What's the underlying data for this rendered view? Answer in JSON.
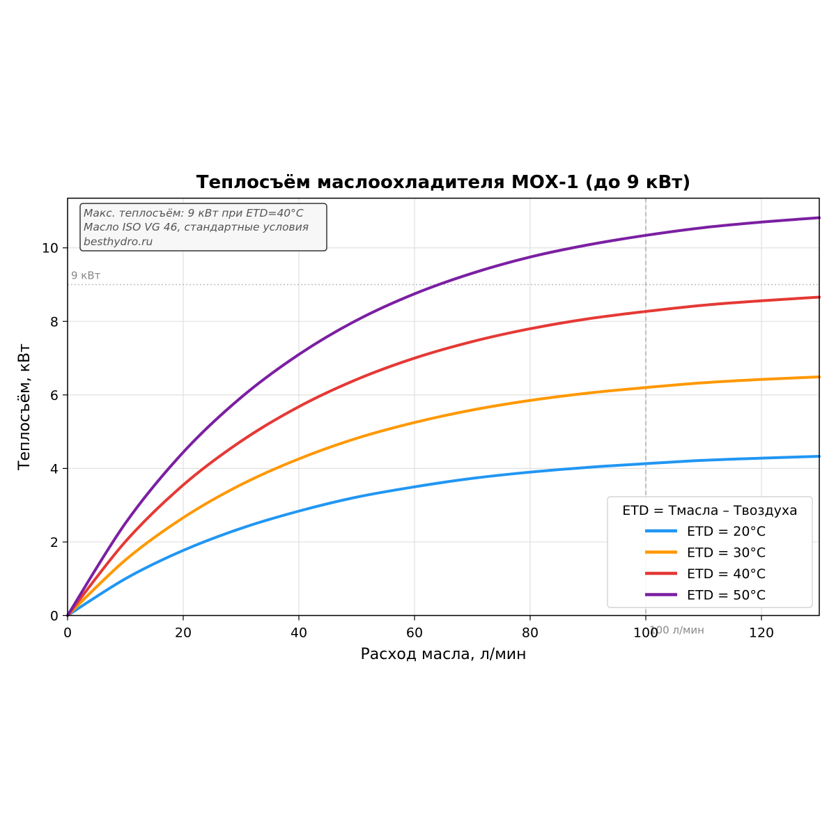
{
  "chart_data": {
    "type": "line",
    "title": "Теплосъём маслоохладителя МОХ-1 (до 9 кВт)",
    "xlabel": "Расход масла, л/мин",
    "ylabel": "Теплосъём, кВт",
    "xlim": [
      0,
      130
    ],
    "ylim": [
      0,
      11.35
    ],
    "xticks": [
      0,
      20,
      40,
      60,
      80,
      100,
      120
    ],
    "xtick_labels": [
      "0",
      "20",
      "40",
      "60",
      "80",
      "100",
      "120"
    ],
    "yticks": [
      0,
      2,
      4,
      6,
      8,
      10
    ],
    "ytick_labels": [
      "0",
      "2",
      "4",
      "6",
      "8",
      "10"
    ],
    "grid": true,
    "legend_title": "ETD = Тмасла – Твоздуха",
    "legend_position": "lower-right",
    "series": [
      {
        "name": "ETD = 20°C",
        "color": "#2196F3",
        "x": [
          0,
          10,
          20,
          30,
          40,
          50,
          60,
          70,
          80,
          90,
          100,
          110,
          120,
          130
        ],
        "y": [
          0,
          1.0,
          1.77,
          2.37,
          2.84,
          3.22,
          3.5,
          3.73,
          3.9,
          4.03,
          4.13,
          4.22,
          4.28,
          4.33
        ]
      },
      {
        "name": "ETD = 30°C",
        "color": "#FF9800",
        "x": [
          0,
          10,
          20,
          30,
          40,
          50,
          60,
          70,
          80,
          90,
          100,
          110,
          120,
          130
        ],
        "y": [
          0,
          1.51,
          2.66,
          3.56,
          4.26,
          4.82,
          5.25,
          5.59,
          5.85,
          6.05,
          6.2,
          6.33,
          6.42,
          6.49
        ]
      },
      {
        "name": "ETD = 40°C",
        "color": "#E53935",
        "x": [
          0,
          10,
          20,
          30,
          40,
          50,
          60,
          70,
          80,
          90,
          100,
          110,
          120,
          130
        ],
        "y": [
          0,
          2.01,
          3.55,
          4.74,
          5.68,
          6.42,
          7.0,
          7.45,
          7.8,
          8.07,
          8.27,
          8.44,
          8.56,
          8.66
        ]
      },
      {
        "name": "ETD = 50°C",
        "color": "#7B1FA2",
        "x": [
          0,
          10,
          20,
          30,
          40,
          50,
          60,
          70,
          80,
          90,
          100,
          110,
          120,
          130
        ],
        "y": [
          0,
          2.51,
          4.44,
          5.93,
          7.1,
          8.03,
          8.75,
          9.31,
          9.75,
          10.08,
          10.34,
          10.55,
          10.7,
          10.82
        ]
      }
    ],
    "reference_lines": [
      {
        "axis": "y",
        "value": 9,
        "label": "9 кВт",
        "style": "dotted",
        "color": "#bbbbbb"
      },
      {
        "axis": "x",
        "value": 100,
        "label": "100 л/мин",
        "style": "dashed",
        "color": "#aaaaaa"
      }
    ],
    "annotation": {
      "lines": [
        "Макс. теплосъём: 9 кВт при ETD=40°C",
        "Масло ISO VG 46, стандартные условия",
        "besthydro.ru"
      ]
    }
  }
}
